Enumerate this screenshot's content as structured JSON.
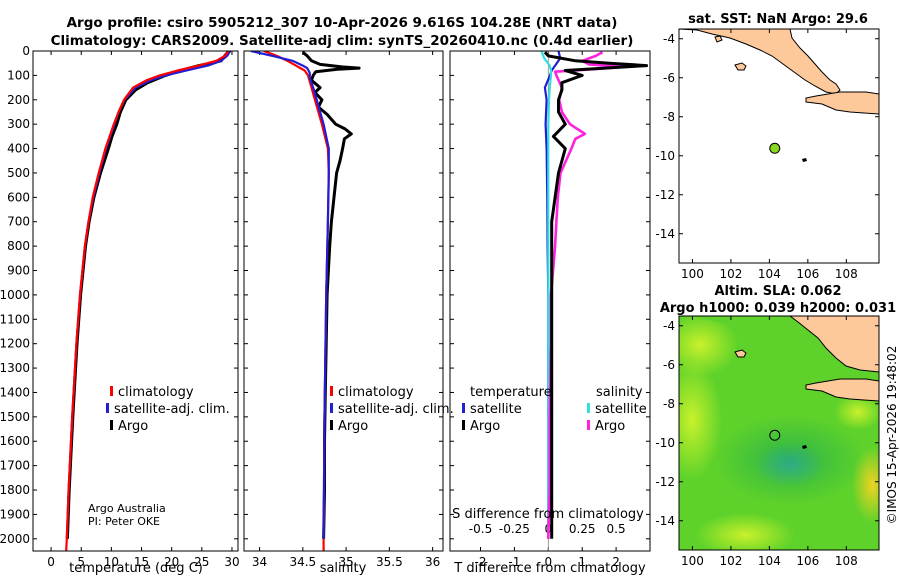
{
  "header": {
    "title_line1": "Argo profile: csiro 5905212_307 10-Apr-2026 9.616S 104.28E (NRT data)",
    "title_line2": "Climatology: CARS2009. Satellite-adj clim: synTS_20260410.nc (0.4d earlier)"
  },
  "side_label": "©IMOS 15-Apr-2026 19:48:02",
  "colors": {
    "climatology": "#ff0000",
    "satellite_adj": "#1f1fd6",
    "argo": "#000000",
    "sat_t": "#33dde0",
    "sat_s": "#ff22dd",
    "land": "#fdc99b",
    "float": "#88d820"
  },
  "chart_data": [
    {
      "id": "temperature",
      "type": "line",
      "xlabel": "temperature (deg C)",
      "xlim": [
        -3,
        31
      ],
      "x_ticks": [
        0,
        5,
        10,
        15,
        20,
        25,
        30
      ],
      "ylim": [
        2050,
        0
      ],
      "y_ticks": [
        0,
        100,
        200,
        300,
        400,
        500,
        600,
        700,
        800,
        900,
        1000,
        1100,
        1200,
        1300,
        1400,
        1500,
        1600,
        1700,
        1800,
        1900,
        2000
      ],
      "legend": [
        "climatology",
        "satellite-adj. clim.",
        "Argo"
      ],
      "annotation": [
        "Argo Australia",
        "PI: Peter OKE"
      ],
      "series": [
        {
          "name": "climatology",
          "depth": [
            0,
            20,
            40,
            60,
            80,
            100,
            120,
            150,
            200,
            250,
            300,
            400,
            500,
            600,
            700,
            800,
            1000,
            1200,
            1500,
            1800,
            2000,
            2050
          ],
          "values": [
            29.4,
            28.8,
            27.4,
            24.5,
            21.0,
            18.0,
            15.8,
            13.6,
            12.1,
            11.2,
            10.4,
            9.0,
            7.9,
            6.9,
            6.2,
            5.6,
            4.8,
            4.2,
            3.5,
            2.9,
            2.6,
            2.5
          ]
        },
        {
          "name": "satellite-adj. clim.",
          "depth": [
            0,
            20,
            40,
            60,
            80,
            100,
            120,
            150,
            200,
            250,
            300,
            400,
            500,
            600,
            700,
            800,
            1000,
            1200,
            1500,
            1800,
            2000
          ],
          "values": [
            29.7,
            29.2,
            28.2,
            26.0,
            22.4,
            19.0,
            16.5,
            14.0,
            12.2,
            11.2,
            10.5,
            9.1,
            8.0,
            7.0,
            6.2,
            5.6,
            4.8,
            4.2,
            3.5,
            2.9,
            2.6
          ]
        },
        {
          "name": "Argo",
          "depth": [
            5,
            20,
            40,
            50,
            60,
            80,
            100,
            130,
            160,
            200,
            250,
            300,
            350,
            400,
            500,
            600,
            700,
            800,
            1000,
            1200,
            1500,
            1800,
            2000
          ],
          "values": [
            29.3,
            28.8,
            28.2,
            26.5,
            24.5,
            21.5,
            19.0,
            16.0,
            14.0,
            12.4,
            11.5,
            10.9,
            10.1,
            9.5,
            8.2,
            7.1,
            6.3,
            5.7,
            4.9,
            4.3,
            3.6,
            3.0,
            2.7
          ]
        }
      ]
    },
    {
      "id": "salinity",
      "type": "line",
      "xlabel": "salinity",
      "xlim": [
        33.82,
        36.12
      ],
      "x_ticks": [
        34,
        34.5,
        35,
        35.5,
        36
      ],
      "ylim": [
        2050,
        0
      ],
      "legend": [
        "climatology",
        "satellite-adj. clim.",
        "Argo"
      ],
      "series": [
        {
          "name": "climatology",
          "depth": [
            0,
            20,
            40,
            60,
            80,
            100,
            150,
            200,
            250,
            300,
            400,
            500,
            700,
            1000,
            1500,
            2000,
            2050
          ],
          "values": [
            34.05,
            34.2,
            34.32,
            34.42,
            34.52,
            34.56,
            34.6,
            34.64,
            34.68,
            34.72,
            34.79,
            34.8,
            34.79,
            34.77,
            34.75,
            34.74,
            34.74
          ]
        },
        {
          "name": "satellite-adj. clim.",
          "depth": [
            0,
            20,
            40,
            60,
            70,
            90,
            110,
            150,
            200,
            250,
            300,
            400,
            500,
            700,
            1000,
            1500,
            2000
          ],
          "values": [
            33.9,
            34.15,
            34.38,
            34.5,
            34.55,
            34.58,
            34.58,
            34.62,
            34.66,
            34.7,
            34.74,
            34.8,
            34.8,
            34.79,
            34.77,
            34.75,
            34.74
          ]
        },
        {
          "name": "Argo",
          "depth": [
            5,
            20,
            40,
            55,
            65,
            70,
            75,
            85,
            100,
            120,
            150,
            170,
            200,
            230,
            260,
            300,
            320,
            340,
            360,
            400,
            450,
            500,
            600,
            700,
            800,
            1000,
            1200,
            1400,
            1600,
            1800,
            2000
          ],
          "values": [
            34.5,
            34.55,
            34.6,
            34.7,
            34.95,
            35.15,
            34.9,
            34.65,
            34.62,
            34.6,
            34.7,
            34.64,
            34.72,
            34.68,
            34.78,
            34.88,
            34.99,
            35.06,
            34.98,
            34.96,
            34.93,
            34.89,
            34.86,
            34.83,
            34.81,
            34.78,
            34.77,
            34.76,
            34.75,
            34.75,
            34.74
          ]
        }
      ]
    },
    {
      "id": "differences",
      "type": "line",
      "xlabel": "T difference from climatology",
      "x_ticks": [
        -2,
        -1,
        0,
        1,
        2
      ],
      "xlim": [
        -2.9,
        3
      ],
      "secondary_xlabel": "S difference from climatology",
      "secondary_ticks": [
        "-0.5",
        "-0.25",
        "0",
        "0.25",
        "0.5"
      ],
      "secondary_tick_values": [
        -0.5,
        -0.25,
        0,
        0.25,
        0.5
      ],
      "secondary_xlim": [
        -0.725,
        0.75
      ],
      "ylim": [
        2050,
        0
      ],
      "legend_headers": [
        "temperature",
        "salinity"
      ],
      "legend": [
        "satellite",
        "Argo",
        "satellite",
        "Argo"
      ],
      "series": [
        {
          "name": "temperature satellite",
          "axis": "T",
          "depth": [
            0,
            30,
            60,
            80,
            100,
            150,
            200,
            300,
            400,
            600,
            800,
            1000,
            1500,
            2000
          ],
          "values": [
            0.3,
            0.35,
            0.2,
            0.1,
            0.05,
            -0.1,
            -0.05,
            -0.08,
            -0.05,
            -0.03,
            -0.02,
            0,
            0,
            0
          ]
        },
        {
          "name": "salinity satellite",
          "axis": "S",
          "depth": [
            0,
            30,
            60,
            80,
            100,
            150,
            200,
            300,
            400,
            600,
            800,
            1000,
            1500,
            2000
          ],
          "values": [
            -0.05,
            -0.03,
            0.01,
            0.02,
            0.02,
            0.01,
            0.005,
            0,
            0,
            0,
            0,
            0,
            0,
            0
          ]
        },
        {
          "name": "salinity Argo",
          "axis": "S",
          "depth": [
            5,
            20,
            40,
            55,
            65,
            75,
            85,
            100,
            150,
            200,
            250,
            300,
            340,
            360,
            400,
            500,
            600,
            700,
            800,
            1000,
            1200,
            1500,
            1800,
            2000
          ],
          "values": [
            0.4,
            0.35,
            0.25,
            0.3,
            0.56,
            0.32,
            0.05,
            0.06,
            0.1,
            0.08,
            0.1,
            0.16,
            0.27,
            0.2,
            0.17,
            0.09,
            0.07,
            0.06,
            0.05,
            0.02,
            0.02,
            0.01,
            0.01,
            0
          ]
        },
        {
          "name": "temperature Argo",
          "axis": "T",
          "depth": [
            5,
            20,
            40,
            50,
            60,
            80,
            100,
            130,
            160,
            200,
            250,
            300,
            350,
            400,
            500,
            600,
            700,
            800,
            1000,
            1200,
            1500,
            1800,
            2000
          ],
          "values": [
            -0.1,
            0.0,
            0.8,
            1.8,
            2.9,
            0.5,
            1.0,
            0.4,
            0.4,
            0.3,
            0.3,
            0.5,
            0.15,
            0.5,
            0.3,
            0.2,
            0.1,
            0.1,
            0.1,
            0.1,
            0.1,
            0.1,
            0.1
          ]
        }
      ]
    },
    {
      "id": "sst_map",
      "type": "map",
      "title": "sat. SST: NaN Argo: 29.6",
      "x_ticks": [
        100,
        102,
        104,
        106,
        108
      ],
      "xlim": [
        99.3,
        109.7
      ],
      "y_ticks": [
        -4,
        -6,
        -8,
        -10,
        -12,
        -14
      ],
      "ylim": [
        -15.5,
        -3.5
      ],
      "float_position": {
        "lon": 104.28,
        "lat": -9.616
      }
    },
    {
      "id": "sla_map",
      "type": "map",
      "title_line1": "Altim. SLA: 0.062",
      "title_line2": "Argo h1000: 0.039 h2000: 0.031",
      "x_ticks": [
        100,
        102,
        104,
        106,
        108
      ],
      "xlim": [
        99.3,
        109.7
      ],
      "y_ticks": [
        -4,
        -6,
        -8,
        -10,
        -12,
        -14
      ],
      "ylim": [
        -15.5,
        -3.5
      ],
      "float_position": {
        "lon": 104.28,
        "lat": -9.616
      }
    }
  ]
}
